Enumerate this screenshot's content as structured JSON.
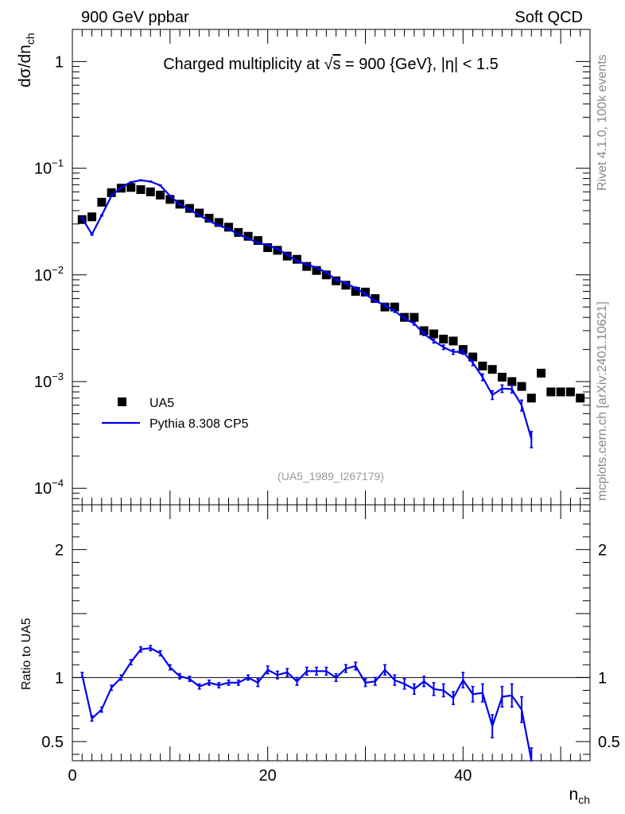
{
  "header": {
    "left": "900 GeV ppbar",
    "right": "Soft QCD"
  },
  "side_labels": {
    "top": "Rivet 4.1.0,  100k events",
    "bottom": "mcplots.cern.ch [arXiv:2401.10621]"
  },
  "chart_data": [
    {
      "type": "scatter",
      "panel": "main",
      "title": "Charged multiplicity at √s = 900 {GeV}, |η| < 1.5",
      "title_prefix": "Charged multiplicity at ",
      "title_sqrt": "√",
      "title_s": "s",
      "title_suffix": " = 900 {GeV}, |η| < 1.5",
      "ylabel": "dσ/dn",
      "ylabel_sub": "ch",
      "y_scale": "log",
      "ylim": [
        7e-05,
        2
      ],
      "xlim": [
        0,
        53
      ],
      "y_ticks": [
        {
          "value": 1,
          "label": "1",
          "sup": ""
        },
        {
          "value": 0.1,
          "label": "10",
          "sup": "−1"
        },
        {
          "value": 0.01,
          "label": "10",
          "sup": "−2"
        },
        {
          "value": 0.001,
          "label": "10",
          "sup": "−3"
        },
        {
          "value": 0.0001,
          "label": "10",
          "sup": "−4"
        }
      ],
      "watermark": "(UA5_1989_I267179)",
      "legend": {
        "position": "bottom-left",
        "entries": [
          "UA5",
          "Pythia 8.308 CP5"
        ]
      },
      "series": [
        {
          "name": "UA5",
          "style": "black-squares",
          "x": [
            1,
            2,
            3,
            4,
            5,
            6,
            7,
            8,
            9,
            10,
            11,
            12,
            13,
            14,
            15,
            16,
            17,
            18,
            19,
            20,
            21,
            22,
            23,
            24,
            25,
            26,
            27,
            28,
            29,
            30,
            31,
            32,
            33,
            34,
            35,
            36,
            37,
            38,
            39,
            40,
            41,
            42,
            43,
            44,
            45,
            46,
            47,
            48,
            49,
            50,
            51,
            52
          ],
          "y": [
            0.033,
            0.035,
            0.048,
            0.059,
            0.065,
            0.066,
            0.063,
            0.06,
            0.056,
            0.051,
            0.046,
            0.042,
            0.038,
            0.034,
            0.031,
            0.028,
            0.025,
            0.023,
            0.021,
            0.018,
            0.017,
            0.015,
            0.014,
            0.012,
            0.011,
            0.01,
            0.0088,
            0.008,
            0.007,
            0.0069,
            0.006,
            0.005,
            0.005,
            0.004,
            0.004,
            0.003,
            0.0028,
            0.0025,
            0.0024,
            0.002,
            0.0017,
            0.0014,
            0.0013,
            0.0011,
            0.001,
            0.0009,
            0.0007,
            0.0012,
            0.0008,
            0.0008,
            0.0008,
            0.0007
          ]
        },
        {
          "name": "Pythia 8.308 CP5",
          "style": "blue-line",
          "color": "#0000ee",
          "x": [
            1,
            2,
            3,
            4,
            5,
            6,
            7,
            8,
            9,
            10,
            11,
            12,
            13,
            14,
            15,
            16,
            17,
            18,
            19,
            20,
            21,
            22,
            23,
            24,
            25,
            26,
            27,
            28,
            29,
            30,
            31,
            32,
            33,
            34,
            35,
            36,
            37,
            38,
            39,
            40,
            41,
            42,
            43,
            44,
            45,
            46,
            47
          ],
          "y": [
            0.034,
            0.024,
            0.036,
            0.055,
            0.066,
            0.074,
            0.077,
            0.075,
            0.069,
            0.055,
            0.046,
            0.041,
            0.036,
            0.032,
            0.029,
            0.027,
            0.024,
            0.022,
            0.02,
            0.019,
            0.0175,
            0.0155,
            0.0135,
            0.0125,
            0.0117,
            0.0105,
            0.009,
            0.0084,
            0.0075,
            0.0066,
            0.0057,
            0.0052,
            0.0046,
            0.0039,
            0.0035,
            0.0028,
            0.0024,
            0.0021,
            0.0019,
            0.0019,
            0.0015,
            0.0011,
            0.00075,
            0.00086,
            0.00085,
            0.0006,
            0.00029
          ],
          "yerr": [
            0.0005,
            0.0004,
            0.0005,
            0.0006,
            0.0007,
            0.0007,
            0.0008,
            0.0008,
            0.0007,
            0.0006,
            0.0005,
            0.0005,
            0.0004,
            0.0004,
            0.0004,
            0.0003,
            0.0003,
            0.0003,
            0.0003,
            0.0003,
            0.0003,
            0.0002,
            0.0002,
            0.0002,
            0.0002,
            0.0002,
            0.0002,
            0.0002,
            0.0002,
            0.0002,
            0.00015,
            0.00015,
            0.00015,
            0.00012,
            0.00012,
            0.0001,
            0.0001,
            0.0001,
            0.0001,
            0.0001,
            9e-05,
            8e-05,
            7e-05,
            7e-05,
            7e-05,
            7e-05,
            5e-05
          ]
        }
      ]
    },
    {
      "type": "line",
      "panel": "ratio",
      "ylabel": "Ratio to UA5",
      "xlabel": "n",
      "xlabel_sub": "ch",
      "xlim": [
        0,
        53
      ],
      "ylim": [
        0.35,
        2.35
      ],
      "reference_line": 1,
      "y_ticks": [
        {
          "value": 2,
          "label": "2"
        },
        {
          "value": 1,
          "label": "1"
        },
        {
          "value": 0.5,
          "label": "0.5"
        }
      ],
      "x_ticks": [
        {
          "value": 0,
          "label": "0"
        },
        {
          "value": 20,
          "label": "20"
        },
        {
          "value": 40,
          "label": "40"
        }
      ],
      "series": [
        {
          "name": "Pythia 8.308 CP5 / UA5",
          "color": "#0000ee",
          "x": [
            1,
            2,
            3,
            4,
            5,
            6,
            7,
            8,
            9,
            10,
            11,
            12,
            13,
            14,
            15,
            16,
            17,
            18,
            19,
            20,
            21,
            22,
            23,
            24,
            25,
            26,
            27,
            28,
            29,
            30,
            31,
            32,
            33,
            34,
            35,
            36,
            37,
            38,
            39,
            40,
            41,
            42,
            43,
            44,
            45,
            46,
            47
          ],
          "y": [
            1.02,
            0.68,
            0.75,
            0.92,
            1.0,
            1.12,
            1.22,
            1.23,
            1.19,
            1.08,
            1.01,
            0.99,
            0.93,
            0.96,
            0.94,
            0.96,
            0.96,
            1.0,
            0.96,
            1.06,
            1.02,
            1.04,
            0.97,
            1.05,
            1.05,
            1.05,
            1.0,
            1.07,
            1.09,
            0.96,
            0.97,
            1.06,
            0.98,
            0.95,
            0.91,
            0.97,
            0.91,
            0.9,
            0.84,
            0.98,
            0.87,
            0.88,
            0.62,
            0.85,
            0.86,
            0.75,
            0.35
          ],
          "yerr": [
            0.02,
            0.02,
            0.02,
            0.02,
            0.02,
            0.02,
            0.02,
            0.02,
            0.02,
            0.02,
            0.02,
            0.02,
            0.02,
            0.02,
            0.02,
            0.02,
            0.02,
            0.02,
            0.03,
            0.03,
            0.03,
            0.03,
            0.03,
            0.03,
            0.03,
            0.03,
            0.03,
            0.03,
            0.03,
            0.03,
            0.03,
            0.04,
            0.04,
            0.04,
            0.04,
            0.04,
            0.05,
            0.05,
            0.05,
            0.06,
            0.06,
            0.07,
            0.09,
            0.08,
            0.09,
            0.1,
            0.1
          ]
        }
      ]
    }
  ]
}
